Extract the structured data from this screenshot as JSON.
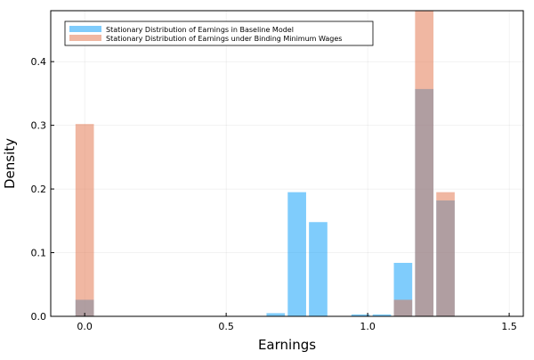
{
  "chart_data": {
    "type": "bar",
    "title": "",
    "xlabel": "Earnings",
    "ylabel": "Density",
    "xlim": [
      -0.12,
      1.55
    ],
    "ylim": [
      0,
      0.48
    ],
    "grid": true,
    "legend_position": "top-left",
    "bar_width": 0.065,
    "x_ticks": [
      0.0,
      0.5,
      1.0,
      1.5
    ],
    "x_tick_labels": [
      "0.0",
      "0.5",
      "1.0",
      "1.5"
    ],
    "y_ticks": [
      0.0,
      0.1,
      0.2,
      0.3,
      0.4
    ],
    "y_tick_labels": [
      "0.0",
      "0.1",
      "0.2",
      "0.3",
      "0.4"
    ],
    "series": [
      {
        "name": "Stationary Distribution of Earnings in Baseline Model",
        "color": "#009AFA",
        "opacity": 0.5,
        "x": [
          0.0,
          0.675,
          0.75,
          0.825,
          0.975,
          1.05,
          1.125,
          1.2,
          1.275
        ],
        "values": [
          0.026,
          0.005,
          0.195,
          0.148,
          0.003,
          0.003,
          0.084,
          0.357,
          0.182
        ]
      },
      {
        "name": "Stationary Distribution of Earnings under Binding Minimum Wages",
        "color": "#E26F46",
        "opacity": 0.5,
        "x": [
          0.0,
          1.125,
          1.2,
          1.275
        ],
        "values": [
          0.302,
          0.026,
          0.48,
          0.195
        ]
      }
    ]
  }
}
